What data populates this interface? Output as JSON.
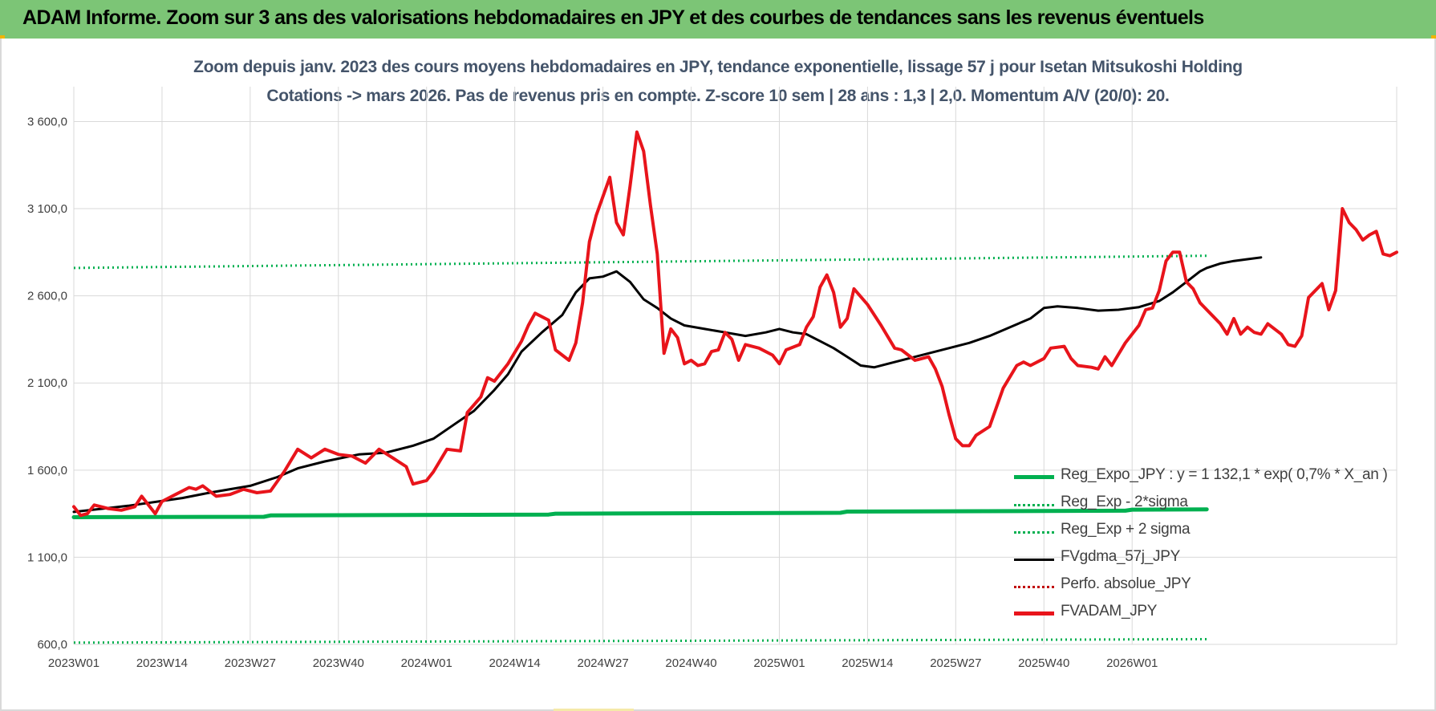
{
  "header": {
    "title": "ADAM Informe. Zoom sur 3 ans des valorisations hebdomadaires en JPY et des courbes de tendances sans les revenus éventuels"
  },
  "colors": {
    "header_bg": "#7cc576",
    "reg_expo": "#00b050",
    "sigma_lines": "#00b050",
    "fvgdma": "#000000",
    "perfo": "#c00000",
    "fvadam": "#e8141b",
    "subtitle": "#44546a"
  },
  "chart_data": {
    "type": "line",
    "title_line1": "Zoom depuis janv. 2023 des cours moyens hebdomadaires en JPY, tendance exponentielle, lissage 57 j pour Isetan Mitsukoshi Holding",
    "title_line2": "Cotations -> mars 2026. Pas de revenus pris en compte. Z-score 10 sem | 28 ans : 1,3 | 2,0. Momentum A/V (20/0): 20.",
    "ylim": [
      600,
      3800
    ],
    "yticks": [
      600,
      1100,
      1600,
      2100,
      2600,
      3100,
      3600
    ],
    "ytick_labels": [
      "600,0",
      "1 100,0",
      "1 600,0",
      "2 100,0",
      "2 600,0",
      "3 100,0",
      "3 600,0"
    ],
    "x_count": 168,
    "xtick_indices": [
      0,
      13,
      26,
      39,
      52,
      65,
      78,
      91,
      104,
      117,
      130,
      143,
      156
    ],
    "xtick_labels": [
      "2023W01",
      "2023W14",
      "2023W27",
      "2023W40",
      "2024W01",
      "2024W14",
      "2024W27",
      "2024W40",
      "2025W01",
      "2025W14",
      "2025W27",
      "2025W40",
      "2026W01"
    ],
    "grid": true,
    "legend_position": "bottom-right",
    "series": [
      {
        "name": "Reg_Expo_JPY : y = 1 132,1 * exp( 0,7% *  X_an )",
        "style": "solid-thick",
        "points": [
          [
            0,
            1330
          ],
          [
            28,
            1332
          ],
          [
            29,
            1340
          ],
          [
            70,
            1345
          ],
          [
            71,
            1350
          ],
          [
            113,
            1355
          ],
          [
            114,
            1362
          ],
          [
            155,
            1367
          ],
          [
            156,
            1373
          ],
          [
            167,
            1375
          ]
        ]
      },
      {
        "name": "Reg_Exp - 2*sigma",
        "style": "dotted",
        "points": [
          [
            0,
            610
          ],
          [
            167,
            630
          ]
        ]
      },
      {
        "name": "Reg_Exp + 2 sigma",
        "style": "dotted",
        "points": [
          [
            0,
            2760
          ],
          [
            167,
            2830
          ]
        ]
      },
      {
        "name": "FVgdma_57j_JPY",
        "style": "solid",
        "points": [
          [
            0,
            1360
          ],
          [
            8,
            1395
          ],
          [
            16,
            1440
          ],
          [
            20,
            1470
          ],
          [
            26,
            1510
          ],
          [
            30,
            1560
          ],
          [
            33,
            1610
          ],
          [
            37,
            1650
          ],
          [
            42,
            1690
          ],
          [
            46,
            1700
          ],
          [
            50,
            1740
          ],
          [
            53,
            1780
          ],
          [
            56,
            1860
          ],
          [
            59,
            1940
          ],
          [
            62,
            2060
          ],
          [
            64,
            2150
          ],
          [
            66,
            2280
          ],
          [
            69,
            2390
          ],
          [
            72,
            2490
          ],
          [
            74,
            2620
          ],
          [
            76,
            2700
          ],
          [
            78,
            2710
          ],
          [
            80,
            2740
          ],
          [
            82,
            2680
          ],
          [
            84,
            2580
          ],
          [
            86,
            2530
          ],
          [
            88,
            2470
          ],
          [
            90,
            2430
          ],
          [
            93,
            2410
          ],
          [
            96,
            2390
          ],
          [
            99,
            2370
          ],
          [
            102,
            2390
          ],
          [
            104,
            2410
          ],
          [
            106,
            2390
          ],
          [
            108,
            2380
          ],
          [
            110,
            2340
          ],
          [
            112,
            2300
          ],
          [
            114,
            2250
          ],
          [
            116,
            2200
          ],
          [
            118,
            2190
          ],
          [
            120,
            2210
          ],
          [
            123,
            2240
          ],
          [
            126,
            2270
          ],
          [
            129,
            2300
          ],
          [
            132,
            2330
          ],
          [
            135,
            2370
          ],
          [
            138,
            2420
          ],
          [
            141,
            2470
          ],
          [
            143,
            2530
          ],
          [
            145,
            2540
          ],
          [
            148,
            2530
          ],
          [
            151,
            2515
          ],
          [
            154,
            2520
          ],
          [
            157,
            2535
          ],
          [
            160,
            2570
          ],
          [
            162,
            2620
          ],
          [
            164,
            2680
          ],
          [
            166,
            2740
          ],
          [
            167,
            2760
          ],
          [
            169,
            2785
          ],
          [
            171,
            2800
          ],
          [
            173,
            2810
          ],
          [
            175,
            2820
          ]
        ]
      },
      {
        "name": "Perfo. absolue_JPY",
        "style": "dotted",
        "points": []
      },
      {
        "name": "FVADAM_JPY",
        "style": "solid-thick",
        "points": [
          [
            0,
            1390
          ],
          [
            1,
            1340
          ],
          [
            2,
            1350
          ],
          [
            3,
            1400
          ],
          [
            5,
            1380
          ],
          [
            7,
            1370
          ],
          [
            9,
            1390
          ],
          [
            10,
            1450
          ],
          [
            12,
            1350
          ],
          [
            13,
            1420
          ],
          [
            15,
            1460
          ],
          [
            17,
            1500
          ],
          [
            18,
            1490
          ],
          [
            19,
            1510
          ],
          [
            21,
            1450
          ],
          [
            23,
            1460
          ],
          [
            25,
            1490
          ],
          [
            27,
            1470
          ],
          [
            29,
            1480
          ],
          [
            31,
            1590
          ],
          [
            33,
            1720
          ],
          [
            35,
            1670
          ],
          [
            37,
            1720
          ],
          [
            39,
            1690
          ],
          [
            41,
            1680
          ],
          [
            43,
            1640
          ],
          [
            45,
            1720
          ],
          [
            47,
            1670
          ],
          [
            49,
            1620
          ],
          [
            50,
            1520
          ],
          [
            52,
            1540
          ],
          [
            53,
            1590
          ],
          [
            55,
            1720
          ],
          [
            57,
            1710
          ],
          [
            58,
            1930
          ],
          [
            60,
            2020
          ],
          [
            61,
            2130
          ],
          [
            62,
            2110
          ],
          [
            64,
            2210
          ],
          [
            66,
            2340
          ],
          [
            67,
            2430
          ],
          [
            68,
            2500
          ],
          [
            70,
            2460
          ],
          [
            71,
            2290
          ],
          [
            73,
            2230
          ],
          [
            74,
            2330
          ],
          [
            75,
            2560
          ],
          [
            76,
            2910
          ],
          [
            77,
            3060
          ],
          [
            78,
            3170
          ],
          [
            79,
            3280
          ],
          [
            80,
            3020
          ],
          [
            81,
            2950
          ],
          [
            82,
            3230
          ],
          [
            83,
            3540
          ],
          [
            84,
            3430
          ],
          [
            85,
            3120
          ],
          [
            86,
            2840
          ],
          [
            87,
            2270
          ],
          [
            88,
            2410
          ],
          [
            89,
            2360
          ],
          [
            90,
            2210
          ],
          [
            91,
            2230
          ],
          [
            92,
            2200
          ],
          [
            93,
            2210
          ],
          [
            94,
            2280
          ],
          [
            95,
            2290
          ],
          [
            96,
            2390
          ],
          [
            97,
            2350
          ],
          [
            98,
            2230
          ],
          [
            99,
            2320
          ],
          [
            101,
            2300
          ],
          [
            103,
            2260
          ],
          [
            104,
            2210
          ],
          [
            105,
            2290
          ],
          [
            107,
            2320
          ],
          [
            108,
            2420
          ],
          [
            109,
            2480
          ],
          [
            110,
            2650
          ],
          [
            111,
            2720
          ],
          [
            112,
            2620
          ],
          [
            113,
            2420
          ],
          [
            114,
            2470
          ],
          [
            115,
            2640
          ],
          [
            117,
            2550
          ],
          [
            119,
            2430
          ],
          [
            121,
            2300
          ],
          [
            122,
            2290
          ],
          [
            124,
            2230
          ],
          [
            125,
            2240
          ],
          [
            126,
            2250
          ],
          [
            127,
            2180
          ],
          [
            128,
            2080
          ],
          [
            129,
            1920
          ],
          [
            130,
            1780
          ],
          [
            131,
            1740
          ],
          [
            132,
            1740
          ],
          [
            133,
            1800
          ],
          [
            135,
            1850
          ],
          [
            137,
            2070
          ],
          [
            139,
            2200
          ],
          [
            140,
            2220
          ],
          [
            141,
            2200
          ],
          [
            143,
            2240
          ],
          [
            144,
            2300
          ],
          [
            146,
            2310
          ],
          [
            147,
            2240
          ],
          [
            148,
            2200
          ],
          [
            150,
            2190
          ],
          [
            151,
            2180
          ],
          [
            152,
            2250
          ],
          [
            153,
            2200
          ],
          [
            155,
            2330
          ],
          [
            157,
            2430
          ],
          [
            158,
            2520
          ],
          [
            159,
            2530
          ],
          [
            160,
            2630
          ],
          [
            161,
            2800
          ],
          [
            162,
            2850
          ],
          [
            163,
            2850
          ],
          [
            164,
            2680
          ],
          [
            165,
            2640
          ],
          [
            166,
            2560
          ],
          [
            168,
            2480
          ],
          [
            169,
            2440
          ],
          [
            170,
            2380
          ],
          [
            171,
            2470
          ],
          [
            172,
            2380
          ],
          [
            173,
            2420
          ],
          [
            174,
            2390
          ],
          [
            175,
            2380
          ],
          [
            176,
            2440
          ],
          [
            178,
            2380
          ],
          [
            179,
            2320
          ],
          [
            180,
            2310
          ],
          [
            181,
            2370
          ],
          [
            182,
            2590
          ],
          [
            184,
            2670
          ],
          [
            185,
            2520
          ],
          [
            186,
            2630
          ],
          [
            187,
            3100
          ],
          [
            188,
            3020
          ],
          [
            189,
            2980
          ],
          [
            190,
            2920
          ],
          [
            191,
            2950
          ],
          [
            192,
            2970
          ],
          [
            193,
            2840
          ],
          [
            194,
            2830
          ],
          [
            195,
            2850
          ]
        ]
      }
    ]
  },
  "legend": [
    {
      "label": "Reg_Expo_JPY : y = 1 132,1 * exp( 0,7% *  X_an )",
      "style": "solid-thick",
      "color": "#00b050"
    },
    {
      "label": "Reg_Exp - 2*sigma",
      "style": "dotted",
      "color": "#00b050"
    },
    {
      "label": "Reg_Exp + 2 sigma",
      "style": "dotted",
      "color": "#00b050"
    },
    {
      "label": "FVgdma_57j_JPY",
      "style": "solid",
      "color": "#000000"
    },
    {
      "label": "Perfo. absolue_JPY",
      "style": "dotted",
      "color": "#c00000"
    },
    {
      "label": "FVADAM_JPY",
      "style": "solid-thick",
      "color": "#e8141b"
    }
  ]
}
